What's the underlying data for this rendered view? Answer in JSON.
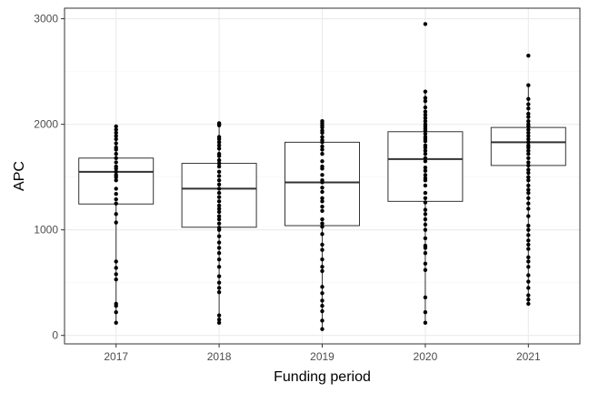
{
  "chart_data": {
    "type": "box",
    "title": "",
    "xlabel": "Funding period",
    "ylabel": "APC",
    "ylim": [
      -80,
      3100
    ],
    "yticks": [
      0,
      1000,
      2000,
      3000
    ],
    "yticklabels": [
      "0",
      "1000",
      "2000",
      "3000"
    ],
    "grid": true,
    "categories": [
      "2017",
      "2018",
      "2019",
      "2020",
      "2021"
    ],
    "boxes": [
      {
        "q1": 1245,
        "median": 1550,
        "q3": 1680,
        "whisker_low": 120,
        "whisker_high": 1980
      },
      {
        "q1": 1025,
        "median": 1390,
        "q3": 1630,
        "whisker_low": 120,
        "whisker_high": 2010
      },
      {
        "q1": 1040,
        "median": 1450,
        "q3": 1830,
        "whisker_low": 60,
        "whisker_high": 2030
      },
      {
        "q1": 1270,
        "median": 1670,
        "q3": 1930,
        "whisker_low": 120,
        "whisker_high": 2310
      },
      {
        "q1": 1610,
        "median": 1830,
        "q3": 1970,
        "whisker_low": 300,
        "whisker_high": 2370
      }
    ],
    "points": [
      [
        120,
        220,
        280,
        300,
        530,
        580,
        640,
        700,
        1070,
        1150,
        1250,
        1290,
        1340,
        1390,
        1470,
        1500,
        1520,
        1550,
        1580,
        1600,
        1640,
        1680,
        1720,
        1760,
        1780,
        1820,
        1860,
        1890,
        1920,
        1950,
        1980
      ],
      [
        120,
        150,
        190,
        410,
        450,
        500,
        560,
        650,
        720,
        780,
        830,
        880,
        940,
        1000,
        1020,
        1060,
        1100,
        1130,
        1170,
        1200,
        1230,
        1270,
        1310,
        1350,
        1390,
        1430,
        1470,
        1510,
        1550,
        1600,
        1630,
        1660,
        1700,
        1720,
        1770,
        1800,
        1830,
        1860,
        1880,
        1990,
        2000,
        2010
      ],
      [
        60,
        140,
        230,
        280,
        330,
        400,
        460,
        610,
        650,
        720,
        810,
        860,
        960,
        1030,
        1060,
        1100,
        1180,
        1220,
        1270,
        1300,
        1360,
        1400,
        1450,
        1470,
        1520,
        1580,
        1600,
        1650,
        1720,
        1760,
        1790,
        1830,
        1850,
        1880,
        1920,
        1940,
        1970,
        1990,
        2010,
        2030
      ],
      [
        120,
        220,
        360,
        620,
        680,
        780,
        830,
        850,
        920,
        1000,
        1050,
        1100,
        1150,
        1190,
        1260,
        1300,
        1350,
        1420,
        1470,
        1490,
        1520,
        1560,
        1590,
        1650,
        1680,
        1720,
        1750,
        1780,
        1800,
        1840,
        1860,
        1880,
        1910,
        1940,
        1960,
        1980,
        2000,
        2030,
        2060,
        2090,
        2120,
        2160,
        2220,
        2250,
        2310,
        2950
      ],
      [
        300,
        340,
        380,
        450,
        510,
        570,
        650,
        700,
        740,
        820,
        860,
        900,
        950,
        1000,
        1040,
        1130,
        1200,
        1250,
        1300,
        1350,
        1380,
        1420,
        1470,
        1500,
        1540,
        1570,
        1610,
        1640,
        1680,
        1720,
        1750,
        1780,
        1800,
        1830,
        1860,
        1890,
        1920,
        1950,
        1980,
        2000,
        2030,
        2070,
        2100,
        2150,
        2190,
        2240,
        2370,
        2650
      ]
    ]
  }
}
